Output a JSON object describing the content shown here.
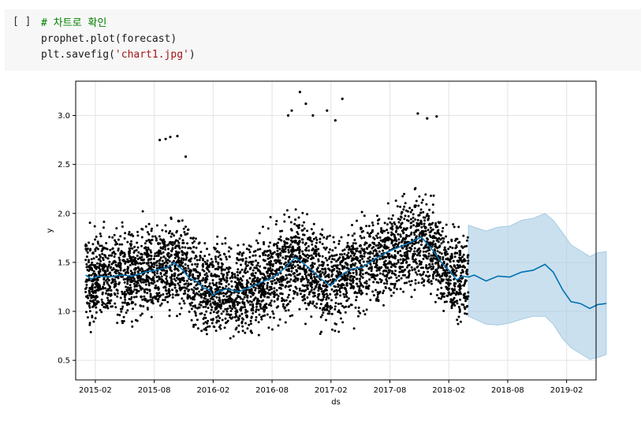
{
  "cell": {
    "run_button": "[ ]",
    "lines": [
      {
        "parts": [
          {
            "t": "# 차트로 확인",
            "c": "comment"
          }
        ]
      },
      {
        "parts": [
          {
            "t": "prophet.plot(forecast)",
            "c": "plain"
          }
        ]
      },
      {
        "parts": [
          {
            "t": "plt.savefig(",
            "c": "plain"
          },
          {
            "t": "'chart1.jpg'",
            "c": "str"
          },
          {
            "t": ")",
            "c": "plain"
          }
        ]
      }
    ]
  },
  "chart_data": {
    "type": "scatter",
    "xlabel": "ds",
    "ylabel": "y",
    "x_ticks": [
      "2015-02",
      "2015-08",
      "2016-02",
      "2016-08",
      "2017-02",
      "2017-08",
      "2018-02",
      "2018-08",
      "2019-02"
    ],
    "y_ticks": [
      0.5,
      1.0,
      1.5,
      2.0,
      2.5,
      3.0
    ],
    "xlim": [
      "2014-12",
      "2019-05"
    ],
    "ylim": [
      0.3,
      3.35
    ],
    "grid": true,
    "colors": {
      "points": "#000000",
      "forecast_line": "#0072b2",
      "uncertainty": "#a6cbe3"
    },
    "series": [
      {
        "role": "observed",
        "marker": "dot",
        "x_range": [
          "2015-01-01",
          "2018-04-01"
        ],
        "approx_band": {
          "low": 0.55,
          "high": 2.3
        },
        "outliers": [
          [
            2015.63,
            2.75
          ],
          [
            2015.68,
            2.76
          ],
          [
            2015.72,
            2.78
          ],
          [
            2015.78,
            2.79
          ],
          [
            2015.85,
            2.58
          ],
          [
            2016.72,
            3.0
          ],
          [
            2016.75,
            3.05
          ],
          [
            2016.82,
            3.24
          ],
          [
            2016.87,
            3.12
          ],
          [
            2016.93,
            3.0
          ],
          [
            2017.05,
            3.05
          ],
          [
            2017.18,
            3.17
          ],
          [
            2017.12,
            2.95
          ],
          [
            2017.82,
            3.02
          ],
          [
            2017.9,
            2.97
          ],
          [
            2017.98,
            2.99
          ]
        ]
      },
      {
        "role": "forecast",
        "points": [
          [
            2015.0,
            1.37
          ],
          [
            2015.05,
            1.33
          ],
          [
            2015.1,
            1.36
          ],
          [
            2015.2,
            1.35
          ],
          [
            2015.3,
            1.37
          ],
          [
            2015.4,
            1.36
          ],
          [
            2015.5,
            1.4
          ],
          [
            2015.6,
            1.42
          ],
          [
            2015.7,
            1.45
          ],
          [
            2015.75,
            1.5
          ],
          [
            2015.82,
            1.43
          ],
          [
            2015.88,
            1.34
          ],
          [
            2015.95,
            1.3
          ],
          [
            2016.0,
            1.24
          ],
          [
            2016.05,
            1.22
          ],
          [
            2016.08,
            1.16
          ],
          [
            2016.12,
            1.2
          ],
          [
            2016.2,
            1.23
          ],
          [
            2016.3,
            1.2
          ],
          [
            2016.4,
            1.25
          ],
          [
            2016.5,
            1.3
          ],
          [
            2016.6,
            1.35
          ],
          [
            2016.7,
            1.45
          ],
          [
            2016.78,
            1.55
          ],
          [
            2016.85,
            1.49
          ],
          [
            2016.92,
            1.42
          ],
          [
            2017.0,
            1.33
          ],
          [
            2017.08,
            1.26
          ],
          [
            2017.15,
            1.35
          ],
          [
            2017.25,
            1.43
          ],
          [
            2017.35,
            1.45
          ],
          [
            2017.45,
            1.53
          ],
          [
            2017.55,
            1.6
          ],
          [
            2017.65,
            1.65
          ],
          [
            2017.75,
            1.7
          ],
          [
            2017.85,
            1.76
          ],
          [
            2017.95,
            1.62
          ],
          [
            2018.02,
            1.5
          ],
          [
            2018.1,
            1.4
          ],
          [
            2018.15,
            1.32
          ],
          [
            2018.2,
            1.36
          ],
          [
            2018.25,
            1.35
          ],
          [
            2018.3,
            1.37
          ],
          [
            2018.4,
            1.31
          ],
          [
            2018.5,
            1.36
          ],
          [
            2018.6,
            1.35
          ],
          [
            2018.7,
            1.4
          ],
          [
            2018.8,
            1.42
          ],
          [
            2018.9,
            1.48
          ],
          [
            2018.97,
            1.4
          ],
          [
            2019.05,
            1.22
          ],
          [
            2019.12,
            1.1
          ],
          [
            2019.2,
            1.08
          ],
          [
            2019.28,
            1.03
          ],
          [
            2019.35,
            1.07
          ],
          [
            2019.42,
            1.08
          ]
        ]
      },
      {
        "role": "uncertainty",
        "points": [
          [
            2018.25,
            0.95,
            1.88
          ],
          [
            2018.4,
            0.87,
            1.82
          ],
          [
            2018.5,
            0.86,
            1.86
          ],
          [
            2018.6,
            0.88,
            1.87
          ],
          [
            2018.7,
            0.92,
            1.93
          ],
          [
            2018.8,
            0.95,
            1.95
          ],
          [
            2018.9,
            0.95,
            2.0
          ],
          [
            2018.97,
            0.87,
            1.93
          ],
          [
            2019.05,
            0.72,
            1.8
          ],
          [
            2019.12,
            0.63,
            1.68
          ],
          [
            2019.2,
            0.57,
            1.62
          ],
          [
            2019.28,
            0.51,
            1.56
          ],
          [
            2019.35,
            0.53,
            1.6
          ],
          [
            2019.42,
            0.56,
            1.61
          ]
        ]
      }
    ]
  }
}
